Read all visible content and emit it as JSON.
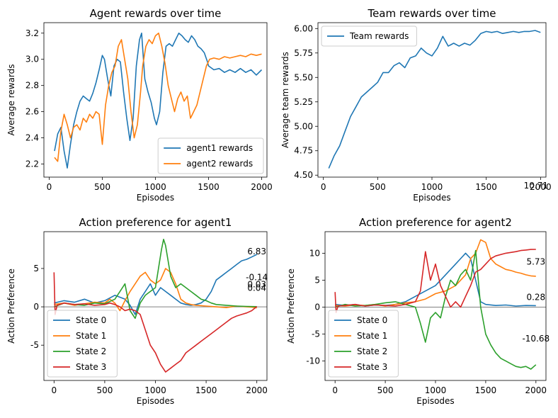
{
  "chart_data": [
    {
      "type": "line",
      "title": "Agent rewards over time",
      "xlabel": "Episodes",
      "ylabel": "Average rewards",
      "xlim": [
        -50,
        2050
      ],
      "ylim": [
        2.1,
        3.28
      ],
      "xticks": [
        0,
        500,
        1000,
        1500,
        2000
      ],
      "yticks": [
        2.2,
        2.4,
        2.6,
        2.8,
        3.0,
        3.2
      ],
      "ytick_format": "1",
      "legend": "lower-right",
      "series": [
        {
          "name": "agent1 rewards",
          "color": "#1f77b4",
          "x": [
            50,
            80,
            110,
            140,
            170,
            200,
            230,
            260,
            290,
            320,
            350,
            380,
            410,
            440,
            470,
            500,
            520,
            550,
            580,
            610,
            640,
            670,
            700,
            730,
            760,
            790,
            820,
            850,
            870,
            900,
            930,
            960,
            990,
            1010,
            1040,
            1070,
            1100,
            1130,
            1160,
            1190,
            1220,
            1250,
            1280,
            1310,
            1340,
            1370,
            1400,
            1430,
            1460,
            1490,
            1500,
            1550,
            1600,
            1650,
            1700,
            1750,
            1800,
            1850,
            1900,
            1950,
            2000
          ],
          "y": [
            2.3,
            2.43,
            2.48,
            2.3,
            2.17,
            2.35,
            2.5,
            2.6,
            2.68,
            2.72,
            2.7,
            2.68,
            2.74,
            2.82,
            2.92,
            3.03,
            3.0,
            2.85,
            2.72,
            2.95,
            3.0,
            2.98,
            2.75,
            2.55,
            2.38,
            2.55,
            2.95,
            3.15,
            3.2,
            2.85,
            2.75,
            2.67,
            2.55,
            2.5,
            2.6,
            2.9,
            3.1,
            3.12,
            3.1,
            3.15,
            3.2,
            3.18,
            3.15,
            3.13,
            3.18,
            3.15,
            3.1,
            3.08,
            3.05,
            2.98,
            2.95,
            2.92,
            2.93,
            2.9,
            2.92,
            2.9,
            2.93,
            2.9,
            2.92,
            2.88,
            2.92
          ]
        },
        {
          "name": "agent2 rewards",
          "color": "#ff7f0e",
          "x": [
            50,
            80,
            110,
            140,
            170,
            200,
            230,
            260,
            290,
            320,
            350,
            380,
            410,
            440,
            470,
            500,
            530,
            560,
            590,
            620,
            650,
            680,
            710,
            740,
            770,
            800,
            830,
            860,
            880,
            910,
            940,
            970,
            1000,
            1030,
            1060,
            1090,
            1120,
            1150,
            1180,
            1210,
            1240,
            1270,
            1300,
            1330,
            1360,
            1390,
            1420,
            1450,
            1480,
            1510,
            1550,
            1600,
            1650,
            1700,
            1750,
            1800,
            1850,
            1900,
            1950,
            2000
          ],
          "y": [
            2.25,
            2.22,
            2.45,
            2.58,
            2.5,
            2.4,
            2.48,
            2.5,
            2.46,
            2.55,
            2.52,
            2.58,
            2.55,
            2.6,
            2.58,
            2.35,
            2.65,
            2.8,
            2.9,
            2.95,
            3.1,
            3.15,
            3.0,
            2.85,
            2.6,
            2.4,
            2.5,
            2.75,
            2.95,
            3.1,
            3.15,
            3.12,
            3.18,
            3.2,
            3.1,
            2.97,
            2.8,
            2.7,
            2.6,
            2.7,
            2.75,
            2.68,
            2.72,
            2.55,
            2.6,
            2.65,
            2.75,
            2.85,
            2.95,
            3.0,
            3.01,
            3.0,
            3.02,
            3.01,
            3.02,
            3.03,
            3.02,
            3.04,
            3.03,
            3.04
          ]
        }
      ],
      "annotations": []
    },
    {
      "type": "line",
      "title": "Team rewards over time",
      "xlabel": "Episodes",
      "ylabel": "Average team rewards",
      "xlim": [
        -50,
        2050
      ],
      "ylim": [
        4.48,
        6.06
      ],
      "xticks": [
        0,
        500,
        1000,
        1500,
        2000
      ],
      "yticks": [
        4.5,
        4.75,
        5.0,
        5.25,
        5.5,
        5.75,
        6.0
      ],
      "ytick_format": "2",
      "legend": "upper-left",
      "series": [
        {
          "name": "Team rewards",
          "color": "#1f77b4",
          "x": [
            50,
            100,
            150,
            200,
            250,
            300,
            350,
            400,
            450,
            500,
            550,
            600,
            650,
            700,
            750,
            800,
            850,
            900,
            950,
            1000,
            1050,
            1100,
            1150,
            1200,
            1250,
            1300,
            1350,
            1400,
            1450,
            1500,
            1550,
            1600,
            1650,
            1700,
            1750,
            1800,
            1850,
            1900,
            1950,
            2000
          ],
          "y": [
            4.57,
            4.7,
            4.8,
            4.95,
            5.1,
            5.2,
            5.3,
            5.35,
            5.4,
            5.45,
            5.55,
            5.55,
            5.62,
            5.65,
            5.6,
            5.7,
            5.72,
            5.8,
            5.75,
            5.72,
            5.8,
            5.92,
            5.82,
            5.85,
            5.82,
            5.85,
            5.83,
            5.88,
            5.95,
            5.97,
            5.96,
            5.97,
            5.95,
            5.96,
            5.97,
            5.96,
            5.97,
            5.97,
            5.98,
            5.96
          ]
        }
      ],
      "annotations": []
    },
    {
      "type": "line",
      "title": "Action preference for agent1",
      "xlabel": "Episodes",
      "ylabel": "Action Preference",
      "xlim": [
        -100,
        2100
      ],
      "ylim": [
        -9.6,
        9.8
      ],
      "xticks": [
        0,
        500,
        1000,
        1500,
        2000
      ],
      "yticks": [
        -5,
        0,
        5
      ],
      "ytick_format": "0",
      "legend": "lower-left",
      "hline": 0,
      "series": [
        {
          "name": "State 0",
          "color": "#1f77b4",
          "x": [
            0,
            100,
            200,
            300,
            400,
            500,
            600,
            700,
            750,
            800,
            850,
            900,
            950,
            1000,
            1050,
            1100,
            1150,
            1200,
            1250,
            1300,
            1350,
            1400,
            1450,
            1500,
            1550,
            1600,
            1650,
            1700,
            1750,
            1800,
            1850,
            1900,
            1950,
            2000
          ],
          "y": [
            0.5,
            0.8,
            0.6,
            1.0,
            0.5,
            0.8,
            1.5,
            1.0,
            0.2,
            -1.0,
            1.0,
            2.0,
            3.0,
            1.5,
            2.5,
            2.0,
            1.5,
            1.0,
            0.5,
            0.3,
            0.2,
            0.3,
            0.5,
            1.0,
            2.0,
            3.5,
            4.0,
            4.5,
            5.0,
            5.5,
            6.0,
            6.2,
            6.5,
            6.83
          ]
        },
        {
          "name": "State 1",
          "color": "#ff7f0e",
          "x": [
            0,
            100,
            200,
            300,
            400,
            500,
            550,
            600,
            650,
            700,
            750,
            800,
            850,
            900,
            950,
            1000,
            1050,
            1100,
            1150,
            1200,
            1250,
            1300,
            1350,
            1400,
            1500,
            1600,
            1700,
            1800,
            1900,
            1950,
            2000
          ],
          "y": [
            0.3,
            0.5,
            0.2,
            0.4,
            0.6,
            0.5,
            1.0,
            0.5,
            -0.5,
            0.8,
            2.0,
            3.0,
            4.0,
            4.5,
            3.5,
            3.0,
            3.5,
            5.0,
            4.5,
            3.0,
            1.0,
            0.5,
            0.3,
            0.2,
            0.1,
            0.0,
            -0.1,
            0.1,
            0.0,
            -0.05,
            -0.14
          ]
        },
        {
          "name": "State 2",
          "color": "#2ca02c",
          "x": [
            0,
            100,
            200,
            300,
            400,
            500,
            600,
            650,
            700,
            750,
            800,
            850,
            900,
            950,
            1000,
            1030,
            1060,
            1080,
            1100,
            1150,
            1200,
            1250,
            1300,
            1350,
            1400,
            1450,
            1500,
            1550,
            1600,
            1700,
            1800,
            1900,
            2000
          ],
          "y": [
            0.0,
            0.5,
            0.3,
            0.2,
            0.5,
            0.4,
            1.0,
            2.0,
            3.0,
            -0.5,
            -1.5,
            0.5,
            1.5,
            2.0,
            2.5,
            5.0,
            7.5,
            8.8,
            8.0,
            4.0,
            2.5,
            3.0,
            2.5,
            2.0,
            1.5,
            1.0,
            0.8,
            0.5,
            0.3,
            0.2,
            0.1,
            0.05,
            0.03
          ]
        },
        {
          "name": "State 3",
          "color": "#d62728",
          "x": [
            0,
            10,
            30,
            100,
            200,
            300,
            400,
            500,
            550,
            600,
            650,
            700,
            750,
            800,
            850,
            900,
            950,
            1000,
            1050,
            1100,
            1150,
            1200,
            1250,
            1300,
            1350,
            1400,
            1450,
            1500,
            1550,
            1600,
            1650,
            1700,
            1750,
            1800,
            1850,
            1900,
            1950,
            2000
          ],
          "y": [
            4.5,
            -1.0,
            0.2,
            0.5,
            0.3,
            0.4,
            0.2,
            0.3,
            0.5,
            0.3,
            0.0,
            -0.5,
            -0.3,
            -0.5,
            -1.0,
            -3.0,
            -5.0,
            -6.0,
            -7.5,
            -8.5,
            -8.0,
            -7.5,
            -7.0,
            -6.0,
            -5.5,
            -5.0,
            -4.5,
            -4.0,
            -3.5,
            -3.0,
            -2.5,
            -2.0,
            -1.5,
            -1.2,
            -1.0,
            -0.8,
            -0.5,
            0.04
          ]
        }
      ],
      "annotations": [
        {
          "text": "6.83",
          "x": 2000,
          "y": 6.83
        },
        {
          "text": "-0.14",
          "x": 2000,
          "y": 3.45
        },
        {
          "text": "0.03",
          "x": 2000,
          "y": 2.55
        },
        {
          "text": "0.04",
          "x": 2000,
          "y": 2.1
        }
      ]
    },
    {
      "type": "line",
      "title": "Action preference for agent2",
      "xlabel": "Episodes",
      "ylabel": "Action Preference",
      "xlim": [
        -100,
        2100
      ],
      "ylim": [
        -13.6,
        14.0
      ],
      "xticks": [
        0,
        500,
        1000,
        1500,
        2000
      ],
      "yticks": [
        -10,
        -5,
        0,
        5,
        10
      ],
      "ytick_format": "0",
      "legend": "lower-left",
      "hline": 0,
      "series": [
        {
          "name": "State 0",
          "color": "#1f77b4",
          "x": [
            0,
            100,
            200,
            300,
            400,
            500,
            600,
            700,
            800,
            900,
            1000,
            1100,
            1200,
            1250,
            1300,
            1350,
            1400,
            1450,
            1500,
            1600,
            1700,
            1800,
            1900,
            2000
          ],
          "y": [
            0.5,
            0.3,
            0.5,
            0.2,
            0.4,
            0.3,
            0.5,
            1.0,
            2.0,
            3.0,
            4.0,
            6.0,
            8.0,
            9.0,
            10.0,
            9.0,
            5.0,
            1.0,
            0.5,
            0.3,
            0.4,
            0.2,
            0.3,
            0.28
          ]
        },
        {
          "name": "State 1",
          "color": "#ff7f0e",
          "x": [
            0,
            100,
            200,
            300,
            400,
            500,
            600,
            700,
            800,
            900,
            1000,
            1100,
            1200,
            1300,
            1350,
            1400,
            1450,
            1500,
            1550,
            1600,
            1650,
            1700,
            1750,
            1800,
            1850,
            1900,
            1950,
            2000
          ],
          "y": [
            0.3,
            0.2,
            0.4,
            0.3,
            0.5,
            0.2,
            0.5,
            0.8,
            1.0,
            1.5,
            2.5,
            3.0,
            4.0,
            6.0,
            9.0,
            10.0,
            12.5,
            12.0,
            9.0,
            8.0,
            7.5,
            7.0,
            6.8,
            6.5,
            6.3,
            6.0,
            5.8,
            5.73
          ]
        },
        {
          "name": "State 2",
          "color": "#2ca02c",
          "x": [
            0,
            100,
            200,
            300,
            400,
            500,
            600,
            700,
            800,
            850,
            900,
            950,
            1000,
            1050,
            1100,
            1150,
            1200,
            1250,
            1300,
            1350,
            1400,
            1450,
            1500,
            1550,
            1600,
            1650,
            1700,
            1750,
            1800,
            1850,
            1900,
            1950,
            2000
          ],
          "y": [
            0.0,
            0.5,
            0.2,
            0.3,
            0.5,
            0.8,
            1.0,
            0.5,
            0.0,
            -3.0,
            -6.5,
            -2.0,
            -1.0,
            -2.0,
            2.0,
            5.0,
            4.0,
            6.0,
            7.0,
            5.0,
            10.5,
            0.0,
            -5.0,
            -7.0,
            -8.5,
            -9.5,
            -10.0,
            -10.5,
            -11.0,
            -11.2,
            -11.0,
            -11.5,
            -10.68
          ]
        },
        {
          "name": "State 3",
          "color": "#d62728",
          "x": [
            0,
            10,
            30,
            100,
            200,
            300,
            400,
            500,
            600,
            700,
            800,
            850,
            900,
            950,
            1000,
            1050,
            1100,
            1150,
            1200,
            1250,
            1300,
            1350,
            1400,
            1450,
            1500,
            1550,
            1600,
            1700,
            1800,
            1850,
            1900,
            1950,
            2000
          ],
          "y": [
            2.8,
            -1.0,
            0.2,
            0.3,
            0.5,
            0.2,
            0.4,
            0.3,
            0.2,
            0.5,
            1.0,
            3.0,
            10.3,
            5.0,
            8.0,
            4.0,
            2.0,
            0.0,
            1.0,
            0.0,
            2.0,
            4.0,
            6.5,
            7.0,
            8.0,
            9.0,
            9.5,
            10.0,
            10.3,
            10.5,
            10.6,
            10.7,
            10.71
          ]
        }
      ],
      "annotations": [
        {
          "text": "10.71",
          "x": 2000,
          "y": 22.0
        },
        {
          "text": "5.73",
          "x": 2000,
          "y": 7.9
        },
        {
          "text": "0.28",
          "x": 2000,
          "y": 1.3
        },
        {
          "text": "-10.68",
          "x": 2000,
          "y": -6.4
        }
      ]
    }
  ]
}
